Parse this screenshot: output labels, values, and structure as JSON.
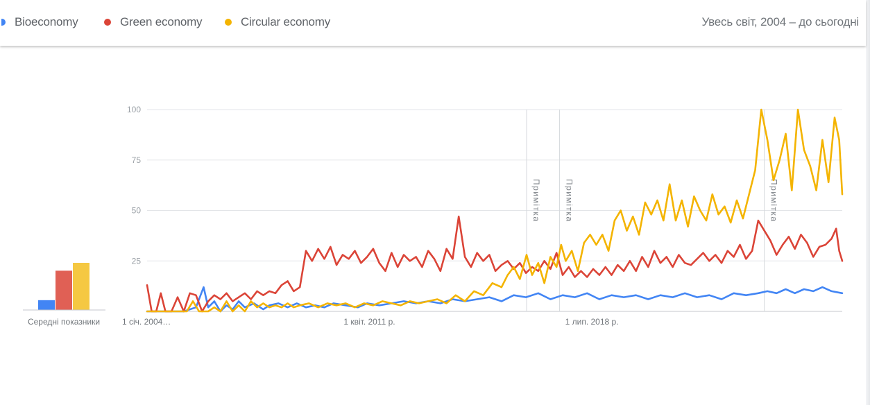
{
  "legend": [
    {
      "label": "Bioeconomy",
      "color": "#4285f4"
    },
    {
      "label": "Green economy",
      "color": "#db4437"
    },
    {
      "label": "Circular economy",
      "color": "#f4b400"
    }
  ],
  "range_label": "Увесь світ, 2004 – до сьогодні",
  "averages": {
    "label": "Середні показники",
    "values": [
      5,
      20,
      24
    ],
    "colors": [
      "#4285f4",
      "#e06055",
      "#f5c842"
    ]
  },
  "annotations": [
    {
      "label": "Примітка",
      "x": 2016.42
    },
    {
      "label": "Примітка",
      "x": 2017.5
    },
    {
      "label": "Примітка",
      "x": 2024.2
    }
  ],
  "chart_data": {
    "type": "line",
    "ylim": [
      0,
      100
    ],
    "y_ticks": [
      "100",
      "75",
      "50",
      "25"
    ],
    "y_tick_values": [
      100,
      75,
      50,
      25
    ],
    "x_range": [
      2004.0,
      2026.75
    ],
    "x_ticks": [
      {
        "label": "1 січ. 2004…",
        "x": 2004.0
      },
      {
        "label": "1 квіт. 2011 р.",
        "x": 2011.25
      },
      {
        "label": "1 лип. 2018 р.",
        "x": 2018.5
      }
    ],
    "series": [
      {
        "name": "Bioeconomy",
        "color": "#4285f4",
        "points": [
          [
            2004.0,
            0
          ],
          [
            2004.4,
            0
          ],
          [
            2004.8,
            0
          ],
          [
            2005.2,
            0
          ],
          [
            2005.6,
            2
          ],
          [
            2005.85,
            12
          ],
          [
            2006.0,
            2
          ],
          [
            2006.2,
            5
          ],
          [
            2006.4,
            0
          ],
          [
            2006.6,
            3
          ],
          [
            2006.8,
            1
          ],
          [
            2007.0,
            5
          ],
          [
            2007.2,
            2
          ],
          [
            2007.5,
            4
          ],
          [
            2007.8,
            1
          ],
          [
            2008.0,
            3
          ],
          [
            2008.3,
            4
          ],
          [
            2008.6,
            2
          ],
          [
            2008.9,
            4
          ],
          [
            2009.2,
            2
          ],
          [
            2009.5,
            3
          ],
          [
            2009.8,
            2
          ],
          [
            2010.1,
            4
          ],
          [
            2010.5,
            3
          ],
          [
            2010.9,
            2
          ],
          [
            2011.2,
            4
          ],
          [
            2011.6,
            3
          ],
          [
            2012.0,
            4
          ],
          [
            2012.4,
            5
          ],
          [
            2012.8,
            4
          ],
          [
            2013.2,
            5
          ],
          [
            2013.6,
            4
          ],
          [
            2014.0,
            6
          ],
          [
            2014.4,
            5
          ],
          [
            2014.8,
            6
          ],
          [
            2015.2,
            7
          ],
          [
            2015.6,
            5
          ],
          [
            2016.0,
            8
          ],
          [
            2016.4,
            7
          ],
          [
            2016.8,
            9
          ],
          [
            2017.2,
            6
          ],
          [
            2017.6,
            8
          ],
          [
            2018.0,
            7
          ],
          [
            2018.4,
            9
          ],
          [
            2018.8,
            6
          ],
          [
            2019.2,
            8
          ],
          [
            2019.6,
            7
          ],
          [
            2020.0,
            8
          ],
          [
            2020.4,
            6
          ],
          [
            2020.8,
            8
          ],
          [
            2021.2,
            7
          ],
          [
            2021.6,
            9
          ],
          [
            2022.0,
            7
          ],
          [
            2022.4,
            8
          ],
          [
            2022.8,
            6
          ],
          [
            2023.2,
            9
          ],
          [
            2023.6,
            8
          ],
          [
            2024.0,
            9
          ],
          [
            2024.3,
            10
          ],
          [
            2024.6,
            9
          ],
          [
            2024.9,
            11
          ],
          [
            2025.2,
            9
          ],
          [
            2025.5,
            11
          ],
          [
            2025.8,
            10
          ],
          [
            2026.1,
            12
          ],
          [
            2026.4,
            10
          ],
          [
            2026.75,
            9
          ]
        ]
      },
      {
        "name": "Green economy",
        "color": "#db4437",
        "points": [
          [
            2004.0,
            13
          ],
          [
            2004.15,
            0
          ],
          [
            2004.3,
            0
          ],
          [
            2004.45,
            9
          ],
          [
            2004.6,
            0
          ],
          [
            2004.8,
            0
          ],
          [
            2005.0,
            7
          ],
          [
            2005.2,
            0
          ],
          [
            2005.4,
            9
          ],
          [
            2005.6,
            8
          ],
          [
            2005.8,
            0
          ],
          [
            2006.0,
            5
          ],
          [
            2006.2,
            8
          ],
          [
            2006.4,
            6
          ],
          [
            2006.6,
            9
          ],
          [
            2006.8,
            5
          ],
          [
            2007.0,
            7
          ],
          [
            2007.2,
            9
          ],
          [
            2007.4,
            6
          ],
          [
            2007.6,
            10
          ],
          [
            2007.8,
            8
          ],
          [
            2008.0,
            10
          ],
          [
            2008.2,
            9
          ],
          [
            2008.4,
            13
          ],
          [
            2008.6,
            15
          ],
          [
            2008.8,
            10
          ],
          [
            2009.0,
            12
          ],
          [
            2009.2,
            30
          ],
          [
            2009.4,
            25
          ],
          [
            2009.6,
            31
          ],
          [
            2009.8,
            26
          ],
          [
            2010.0,
            32
          ],
          [
            2010.2,
            23
          ],
          [
            2010.4,
            28
          ],
          [
            2010.6,
            26
          ],
          [
            2010.8,
            30
          ],
          [
            2011.0,
            24
          ],
          [
            2011.2,
            27
          ],
          [
            2011.4,
            31
          ],
          [
            2011.6,
            24
          ],
          [
            2011.8,
            20
          ],
          [
            2012.0,
            29
          ],
          [
            2012.2,
            22
          ],
          [
            2012.4,
            28
          ],
          [
            2012.6,
            25
          ],
          [
            2012.8,
            27
          ],
          [
            2013.0,
            22
          ],
          [
            2013.2,
            30
          ],
          [
            2013.4,
            26
          ],
          [
            2013.6,
            20
          ],
          [
            2013.8,
            31
          ],
          [
            2014.0,
            26
          ],
          [
            2014.2,
            47
          ],
          [
            2014.4,
            27
          ],
          [
            2014.6,
            22
          ],
          [
            2014.8,
            29
          ],
          [
            2015.0,
            25
          ],
          [
            2015.2,
            28
          ],
          [
            2015.4,
            20
          ],
          [
            2015.6,
            23
          ],
          [
            2015.8,
            25
          ],
          [
            2016.0,
            21
          ],
          [
            2016.2,
            24
          ],
          [
            2016.4,
            19
          ],
          [
            2016.6,
            22
          ],
          [
            2016.8,
            20
          ],
          [
            2017.0,
            25
          ],
          [
            2017.2,
            21
          ],
          [
            2017.4,
            29
          ],
          [
            2017.6,
            18
          ],
          [
            2017.8,
            22
          ],
          [
            2018.0,
            17
          ],
          [
            2018.2,
            20
          ],
          [
            2018.4,
            17
          ],
          [
            2018.6,
            21
          ],
          [
            2018.8,
            18
          ],
          [
            2019.0,
            22
          ],
          [
            2019.2,
            18
          ],
          [
            2019.4,
            23
          ],
          [
            2019.6,
            20
          ],
          [
            2019.8,
            25
          ],
          [
            2020.0,
            20
          ],
          [
            2020.2,
            27
          ],
          [
            2020.4,
            22
          ],
          [
            2020.6,
            30
          ],
          [
            2020.8,
            24
          ],
          [
            2021.0,
            27
          ],
          [
            2021.2,
            22
          ],
          [
            2021.4,
            28
          ],
          [
            2021.6,
            24
          ],
          [
            2021.8,
            23
          ],
          [
            2022.0,
            26
          ],
          [
            2022.2,
            29
          ],
          [
            2022.4,
            25
          ],
          [
            2022.6,
            28
          ],
          [
            2022.8,
            24
          ],
          [
            2023.0,
            30
          ],
          [
            2023.2,
            27
          ],
          [
            2023.4,
            33
          ],
          [
            2023.6,
            26
          ],
          [
            2023.8,
            30
          ],
          [
            2024.0,
            45
          ],
          [
            2024.2,
            40
          ],
          [
            2024.4,
            35
          ],
          [
            2024.6,
            28
          ],
          [
            2024.8,
            33
          ],
          [
            2025.0,
            37
          ],
          [
            2025.2,
            31
          ],
          [
            2025.4,
            38
          ],
          [
            2025.6,
            34
          ],
          [
            2025.8,
            27
          ],
          [
            2026.0,
            32
          ],
          [
            2026.2,
            33
          ],
          [
            2026.4,
            36
          ],
          [
            2026.55,
            41
          ],
          [
            2026.65,
            30
          ],
          [
            2026.75,
            25
          ]
        ]
      },
      {
        "name": "Circular economy",
        "color": "#f4b400",
        "points": [
          [
            2004.0,
            0
          ],
          [
            2004.5,
            0
          ],
          [
            2005.0,
            0
          ],
          [
            2005.3,
            0
          ],
          [
            2005.5,
            5
          ],
          [
            2005.7,
            0
          ],
          [
            2006.0,
            0
          ],
          [
            2006.2,
            2
          ],
          [
            2006.4,
            0
          ],
          [
            2006.6,
            5
          ],
          [
            2006.8,
            0
          ],
          [
            2007.0,
            3
          ],
          [
            2007.2,
            0
          ],
          [
            2007.4,
            5
          ],
          [
            2007.6,
            2
          ],
          [
            2007.8,
            4
          ],
          [
            2008.0,
            2
          ],
          [
            2008.2,
            3
          ],
          [
            2008.4,
            2
          ],
          [
            2008.6,
            4
          ],
          [
            2008.8,
            2
          ],
          [
            2009.0,
            3
          ],
          [
            2009.3,
            4
          ],
          [
            2009.6,
            2
          ],
          [
            2009.9,
            4
          ],
          [
            2010.2,
            3
          ],
          [
            2010.5,
            4
          ],
          [
            2010.8,
            2
          ],
          [
            2011.1,
            4
          ],
          [
            2011.4,
            3
          ],
          [
            2011.7,
            5
          ],
          [
            2012.0,
            4
          ],
          [
            2012.3,
            3
          ],
          [
            2012.6,
            5
          ],
          [
            2012.9,
            4
          ],
          [
            2013.2,
            5
          ],
          [
            2013.5,
            6
          ],
          [
            2013.8,
            4
          ],
          [
            2014.1,
            8
          ],
          [
            2014.4,
            5
          ],
          [
            2014.7,
            10
          ],
          [
            2015.0,
            8
          ],
          [
            2015.3,
            14
          ],
          [
            2015.6,
            12
          ],
          [
            2015.8,
            18
          ],
          [
            2016.0,
            22
          ],
          [
            2016.2,
            16
          ],
          [
            2016.42,
            28
          ],
          [
            2016.6,
            18
          ],
          [
            2016.8,
            24
          ],
          [
            2017.0,
            14
          ],
          [
            2017.2,
            27
          ],
          [
            2017.4,
            22
          ],
          [
            2017.55,
            33
          ],
          [
            2017.7,
            25
          ],
          [
            2017.9,
            30
          ],
          [
            2018.1,
            20
          ],
          [
            2018.3,
            34
          ],
          [
            2018.5,
            38
          ],
          [
            2018.7,
            33
          ],
          [
            2018.9,
            38
          ],
          [
            2019.1,
            30
          ],
          [
            2019.3,
            45
          ],
          [
            2019.5,
            50
          ],
          [
            2019.7,
            40
          ],
          [
            2019.9,
            47
          ],
          [
            2020.1,
            38
          ],
          [
            2020.3,
            54
          ],
          [
            2020.5,
            48
          ],
          [
            2020.7,
            55
          ],
          [
            2020.9,
            45
          ],
          [
            2021.1,
            63
          ],
          [
            2021.3,
            45
          ],
          [
            2021.5,
            55
          ],
          [
            2021.7,
            42
          ],
          [
            2021.9,
            57
          ],
          [
            2022.1,
            50
          ],
          [
            2022.3,
            45
          ],
          [
            2022.5,
            58
          ],
          [
            2022.7,
            48
          ],
          [
            2022.9,
            52
          ],
          [
            2023.1,
            44
          ],
          [
            2023.3,
            55
          ],
          [
            2023.5,
            46
          ],
          [
            2023.7,
            58
          ],
          [
            2023.9,
            70
          ],
          [
            2024.1,
            100
          ],
          [
            2024.3,
            85
          ],
          [
            2024.5,
            65
          ],
          [
            2024.7,
            75
          ],
          [
            2024.9,
            88
          ],
          [
            2025.1,
            60
          ],
          [
            2025.3,
            100
          ],
          [
            2025.5,
            80
          ],
          [
            2025.7,
            72
          ],
          [
            2025.9,
            60
          ],
          [
            2026.1,
            85
          ],
          [
            2026.3,
            64
          ],
          [
            2026.5,
            96
          ],
          [
            2026.65,
            85
          ],
          [
            2026.75,
            58
          ]
        ]
      }
    ]
  }
}
